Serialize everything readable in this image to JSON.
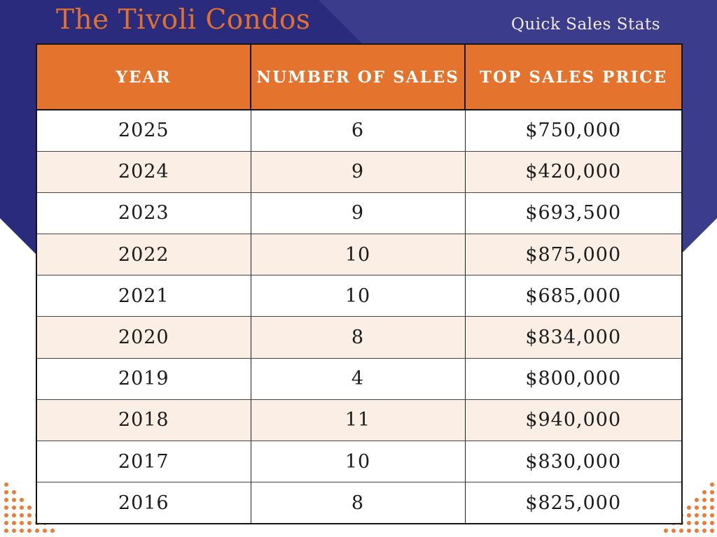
{
  "page": {
    "title": "The Tivoli Condos",
    "subtitle": "Quick Sales Stats"
  },
  "colors": {
    "navy": "#2b2b7e",
    "indigo": "#3c3c8d",
    "orange": "#e4732e",
    "title_orange": "#e2712d",
    "row_shade": "#fbeee4",
    "row_white": "#ffffff",
    "border_dark": "#161616",
    "border_light": "#454545",
    "header_text": "#ffffff",
    "cell_text": "#1b1b1b",
    "dot_orange": "#e87b38",
    "subtitle_text": "#f2ede3"
  },
  "chart_data": {
    "type": "table",
    "title": "The Tivoli Condos",
    "subtitle": "Quick Sales Stats",
    "columns": [
      "YEAR",
      "NUMBER OF SALES",
      "TOP SALES PRICE"
    ],
    "rows": [
      {
        "year": "2025",
        "sales": "6",
        "price": "$750,000",
        "shaded": false
      },
      {
        "year": "2024",
        "sales": "9",
        "price": "$420,000",
        "shaded": true
      },
      {
        "year": "2023",
        "sales": "9",
        "price": "$693,500",
        "shaded": false
      },
      {
        "year": "2022",
        "sales": "10",
        "price": "$875,000",
        "shaded": true
      },
      {
        "year": "2021",
        "sales": "10",
        "price": "$685,000",
        "shaded": false
      },
      {
        "year": "2020",
        "sales": "8",
        "price": "$834,000",
        "shaded": true
      },
      {
        "year": "2019",
        "sales": "4",
        "price": "$800,000",
        "shaded": false
      },
      {
        "year": "2018",
        "sales": "11",
        "price": "$940,000",
        "shaded": true
      },
      {
        "year": "2017",
        "sales": "10",
        "price": "$830,000",
        "shaded": false
      },
      {
        "year": "2016",
        "sales": "8",
        "price": "$825,000",
        "shaded": false
      }
    ],
    "layout": {
      "grid": true,
      "header_fill": "#e4732e",
      "shade_fill": "#fbeee4"
    }
  },
  "decor": {
    "dot_rows": 7,
    "corner_bottom_left": "dot-triangle",
    "corner_bottom_right": "dot-triangle"
  }
}
